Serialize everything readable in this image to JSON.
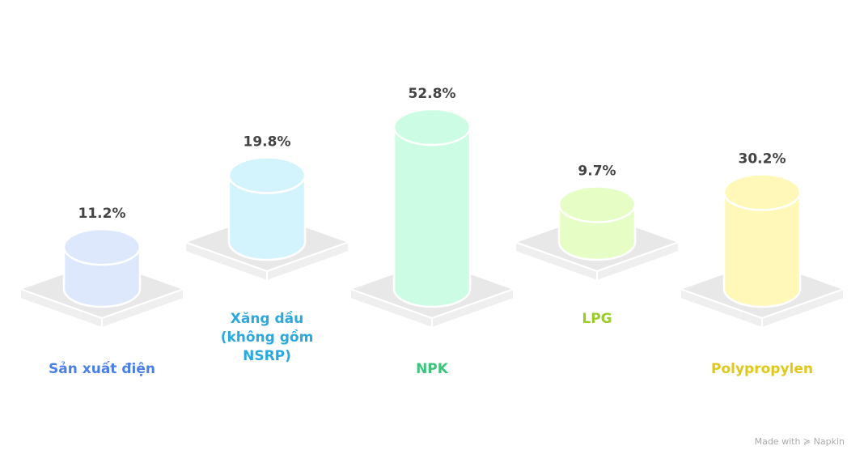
{
  "chart_data": {
    "type": "bar",
    "style": "3d-cylinder",
    "categories": [
      "Sản xuất điện",
      "Xăng dầu (không gồm NSRP)",
      "NPK",
      "LPG",
      "Polypropylen"
    ],
    "category_lines": [
      [
        "Sản xuất điện"
      ],
      [
        "Xăng dầu",
        "(không gồm",
        "NSRP)"
      ],
      [
        "NPK"
      ],
      [
        "LPG"
      ],
      [
        "Polypropylen"
      ]
    ],
    "values": [
      11.2,
      19.8,
      52.8,
      9.7,
      30.2
    ],
    "value_labels": [
      "11.2%",
      "19.8%",
      "52.8%",
      "9.7%",
      "30.2%"
    ],
    "fill_colors": [
      "#dde8fd",
      "#d3f3fd",
      "#ccfde4",
      "#e7fdc6",
      "#fff8b8"
    ],
    "label_colors": [
      "#4a7fe8",
      "#29a9dd",
      "#3cc47a",
      "#9ccc2c",
      "#e0c818"
    ],
    "grid": false,
    "legend": "none"
  },
  "footer": {
    "text": "Made with",
    "brand": "Napkin"
  }
}
